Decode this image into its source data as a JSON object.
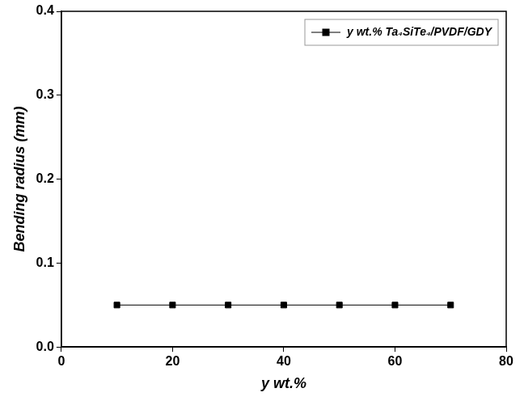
{
  "chart_data": {
    "type": "line",
    "x_label": "y wt.%",
    "y_label": "Bending radius (mm)",
    "x": [
      10,
      20,
      30,
      40,
      50,
      60,
      70
    ],
    "series": [
      {
        "name": "y wt.% Ta₄SiTe₄/PVDF/GDY",
        "color": "#000000",
        "marker": "square",
        "line_style": "solid",
        "values": [
          0.05,
          0.05,
          0.05,
          0.05,
          0.05,
          0.05,
          0.05
        ]
      }
    ],
    "xlim": [
      0,
      80
    ],
    "xticks": [
      0,
      20,
      40,
      60,
      80
    ],
    "ylim": [
      0,
      0.4
    ],
    "yticks": [
      {
        "value": 0,
        "label": "0.0"
      },
      0.1,
      0.2,
      0.3,
      0.4
    ],
    "grid": false,
    "legend": "upper right"
  }
}
